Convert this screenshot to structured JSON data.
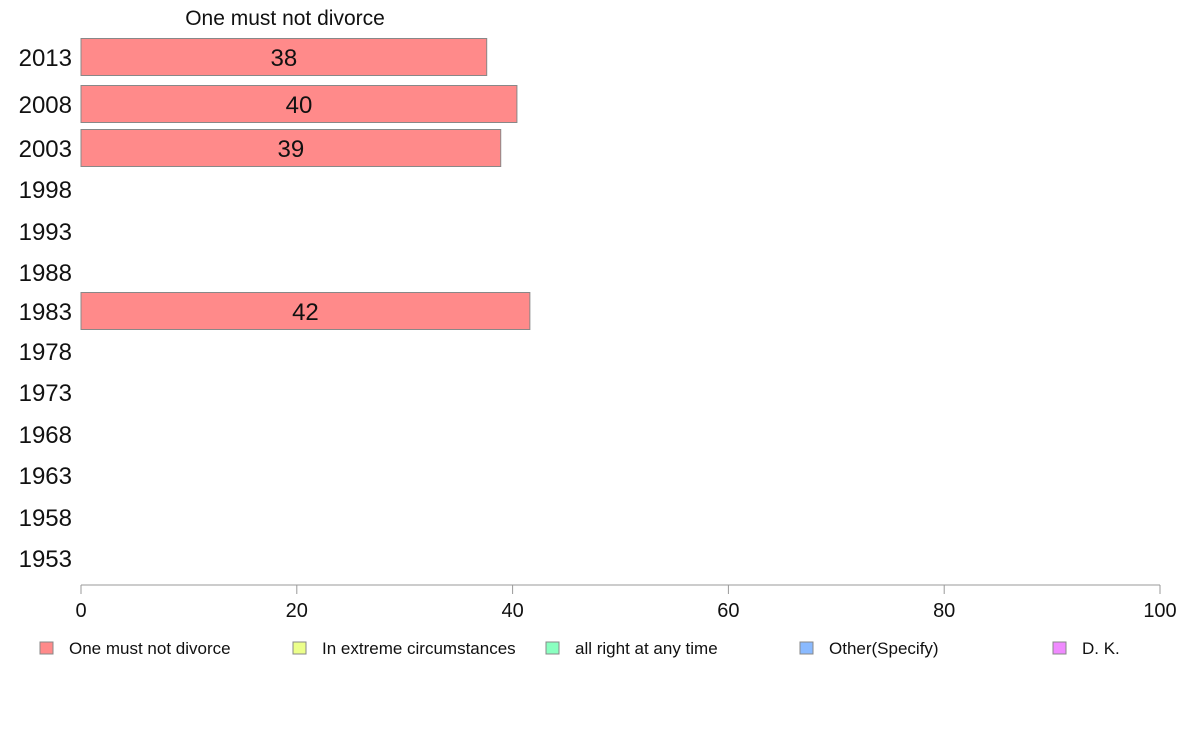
{
  "chart_data": {
    "type": "bar",
    "orientation": "horizontal",
    "title": "One must not divorce",
    "categories": [
      "2013",
      "2008",
      "2003",
      "1998",
      "1993",
      "1988",
      "1983",
      "1978",
      "1973",
      "1968",
      "1963",
      "1958",
      "1953"
    ],
    "series": [
      {
        "name": "One must not divorce",
        "color": "#ff8a8a",
        "values": [
          37.6,
          40.4,
          38.9,
          null,
          null,
          null,
          41.6,
          null,
          null,
          null,
          null,
          null,
          null
        ],
        "labels": [
          "38",
          "40",
          "39",
          null,
          null,
          null,
          "42",
          null,
          null,
          null,
          null,
          null,
          null
        ]
      }
    ],
    "xlim": [
      0,
      100
    ],
    "xticks": [
      "0",
      "20",
      "40",
      "60",
      "80",
      "100"
    ],
    "grid": false,
    "legend_position": "bottom",
    "legend": [
      {
        "label": "One must not divorce",
        "color": "#ff8a8a"
      },
      {
        "label": "In extreme circumstances",
        "color": "#ecff8a"
      },
      {
        "label": "all right at any time",
        "color": "#8affc0"
      },
      {
        "label": "Other(Specify)",
        "color": "#8abaff"
      },
      {
        "label": "D. K.",
        "color": "#f08aff"
      }
    ]
  }
}
